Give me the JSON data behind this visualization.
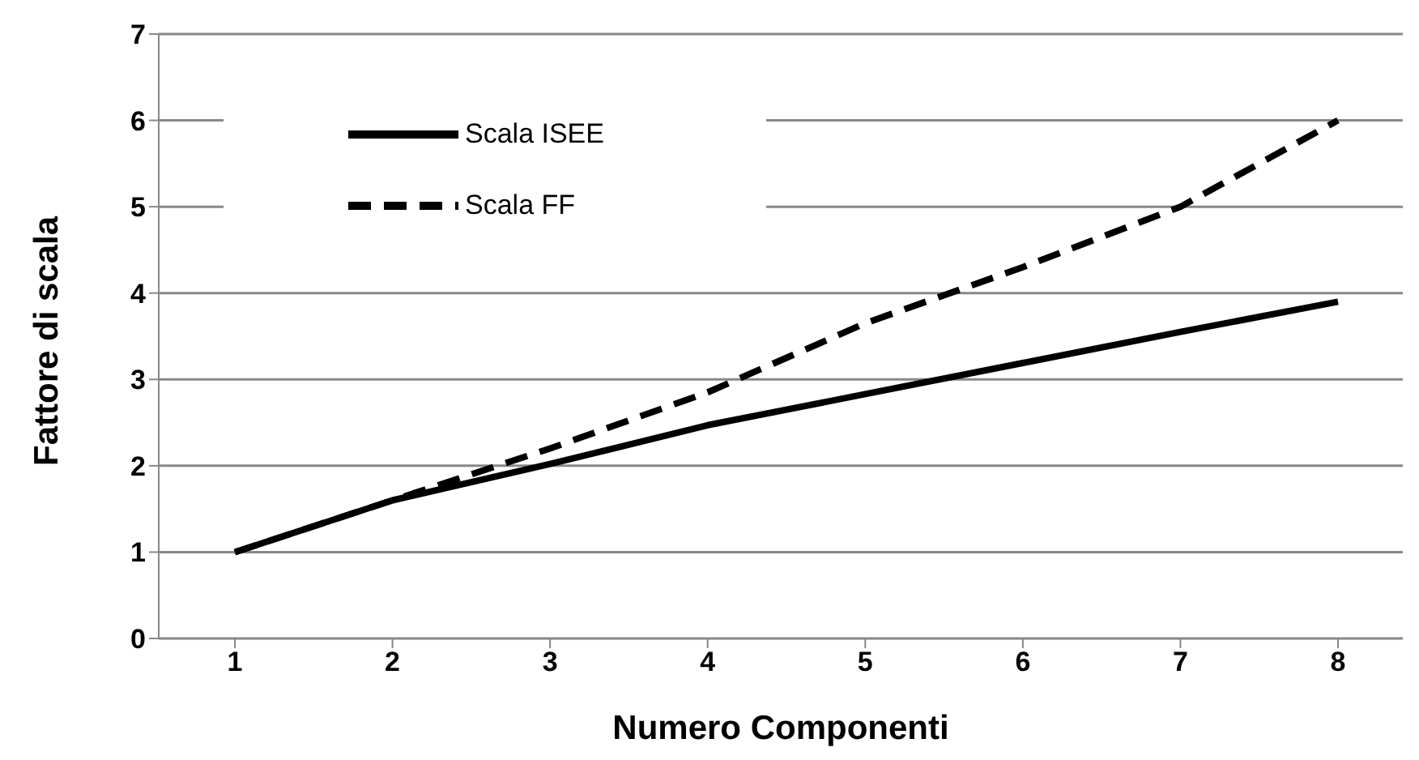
{
  "chart_data": {
    "type": "line",
    "xlabel": "Numero Componenti",
    "ylabel": "Fattore di scala",
    "categories": [
      "1",
      "2",
      "3",
      "4",
      "5",
      "6",
      "7",
      "8"
    ],
    "series": [
      {
        "name": "Scala ISEE",
        "color": "#000000",
        "line_style": "solid",
        "values": [
          1,
          1.6,
          2.02,
          2.47,
          2.83,
          3.19,
          3.55,
          3.9
        ]
      },
      {
        "name": "Scala FF",
        "color": "#000000",
        "line_style": "dashed",
        "values": [
          1,
          1.6,
          2.2,
          2.85,
          3.65,
          4.3,
          5.0,
          6.0
        ]
      }
    ],
    "ylim": [
      0,
      7
    ],
    "yticks": [
      0,
      1,
      2,
      3,
      4,
      5,
      6,
      7
    ],
    "grid": "y",
    "legend": "top left",
    "marker": "none"
  }
}
